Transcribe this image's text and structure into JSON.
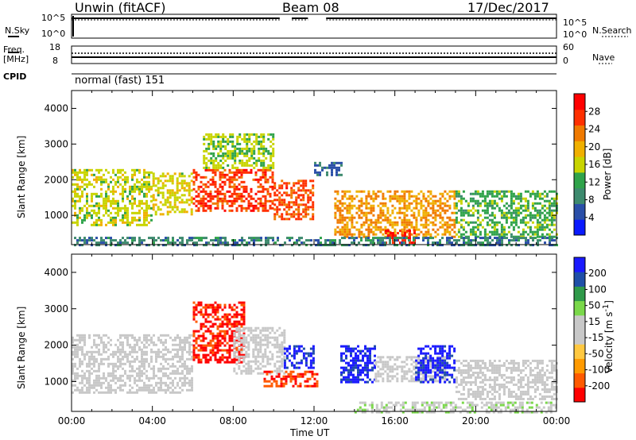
{
  "header": {
    "station": "Unwin (fitACF)",
    "beam": "Beam 08",
    "date": "17/Dec/2017"
  },
  "top_panels": {
    "nsky_label": "N.Sky",
    "nsearch_label": "N.Search",
    "freq_label_1": "Freq.",
    "freq_label_2": "[MHz]",
    "nave_label": "Nave",
    "cpid_label": "CPID",
    "cpid_value": "normal (fast) 151",
    "noise_ticks_left": [
      "10^5",
      "10^0"
    ],
    "noise_ticks_right": [
      "10^5",
      "10^0"
    ],
    "freq_ticks_left": [
      "18",
      "8"
    ],
    "nave_ticks_right": [
      "60",
      "0"
    ]
  },
  "chart_data": [
    {
      "type": "heatmap",
      "panel": "power",
      "ylabel": "Slant Range [km]",
      "xlabel": "",
      "ylim": [
        180,
        4500
      ],
      "yticks": [
        "4000",
        "3000",
        "2000",
        "1000"
      ],
      "xlim_hours": [
        0,
        24
      ],
      "colorbar": {
        "label": "Power [dB]",
        "ticks": [
          "28",
          "24",
          "20",
          "16",
          "12",
          "8",
          "4"
        ],
        "range": [
          0,
          30
        ],
        "colors": [
          "#0a1aff",
          "#2a4fa8",
          "#3d8a6e",
          "#2fa34a",
          "#c8d400",
          "#f0b000",
          "#f07a00",
          "#ff3000",
          "#ff0000"
        ]
      },
      "echo_regions": [
        {
          "t0": 0.0,
          "t1": 4.0,
          "r0": 700,
          "r1": 2300,
          "value": 15
        },
        {
          "t0": 4.0,
          "t1": 6.0,
          "r0": 1000,
          "r1": 2200,
          "value": 16
        },
        {
          "t0": 6.0,
          "t1": 10.0,
          "r0": 1100,
          "r1": 2300,
          "value": 25
        },
        {
          "t0": 6.5,
          "t1": 10.0,
          "r0": 2300,
          "r1": 3300,
          "value": 14
        },
        {
          "t0": 10.0,
          "t1": 12.0,
          "r0": 900,
          "r1": 2000,
          "value": 24
        },
        {
          "t0": 12.0,
          "t1": 13.3,
          "r0": 2100,
          "r1": 2500,
          "value": 6
        },
        {
          "t0": 13.0,
          "t1": 19.0,
          "r0": 400,
          "r1": 1700,
          "value": 20
        },
        {
          "t0": 15.5,
          "t1": 17.0,
          "r0": 200,
          "r1": 600,
          "value": 27
        },
        {
          "t0": 19.0,
          "t1": 24.0,
          "r0": 400,
          "r1": 1700,
          "value": 12
        },
        {
          "t0": 0.0,
          "t1": 24.0,
          "r0": 180,
          "r1": 400,
          "value": 8
        }
      ]
    },
    {
      "type": "heatmap",
      "panel": "velocity",
      "ylabel": "Slant Range [km]",
      "xlabel": "Time UT",
      "ylim": [
        180,
        4500
      ],
      "yticks": [
        "4000",
        "3000",
        "2000",
        "1000"
      ],
      "xticks": [
        "00:00",
        "04:00",
        "08:00",
        "12:00",
        "16:00",
        "20:00",
        "00:00"
      ],
      "xlim_hours": [
        0,
        24
      ],
      "colorbar": {
        "label": "Velocity [m s^-1]",
        "ticks": [
          "200",
          "100",
          "50",
          "15",
          "-15",
          "-50",
          "-100",
          "-200"
        ],
        "range": [
          -250,
          250
        ],
        "colors": [
          "#ff0000",
          "#ff5a00",
          "#ff9a00",
          "#ffc840",
          "#c8c8c8",
          "#c8c8c8",
          "#7ad84a",
          "#2f9a4a",
          "#1f4fa8",
          "#1a1aff"
        ]
      },
      "echo_regions": [
        {
          "t0": 0.0,
          "t1": 6.0,
          "r0": 700,
          "r1": 2300,
          "value": 0
        },
        {
          "t0": 6.0,
          "t1": 8.5,
          "r0": 1500,
          "r1": 3200,
          "value": -220
        },
        {
          "t0": 8.0,
          "t1": 10.5,
          "r0": 1200,
          "r1": 2500,
          "value": 0
        },
        {
          "t0": 9.5,
          "t1": 12.2,
          "r0": 900,
          "r1": 1300,
          "value": -200
        },
        {
          "t0": 10.5,
          "t1": 12.0,
          "r0": 1400,
          "r1": 2000,
          "value": 220
        },
        {
          "t0": 13.3,
          "t1": 15.0,
          "r0": 1000,
          "r1": 2000,
          "value": 220
        },
        {
          "t0": 15.0,
          "t1": 18.5,
          "r0": 1000,
          "r1": 1700,
          "value": 0
        },
        {
          "t0": 17.0,
          "t1": 19.0,
          "r0": 1000,
          "r1": 2000,
          "value": 220
        },
        {
          "t0": 19.0,
          "t1": 24.0,
          "r0": 500,
          "r1": 1600,
          "value": 0
        },
        {
          "t0": 14.0,
          "t1": 24.0,
          "r0": 180,
          "r1": 450,
          "value": 30
        }
      ]
    }
  ]
}
